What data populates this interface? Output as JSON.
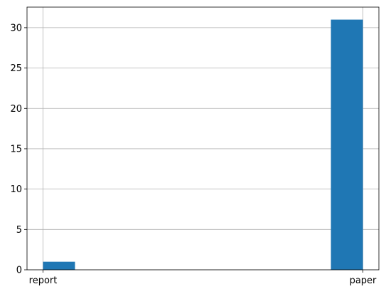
{
  "chart_data": {
    "type": "histogram",
    "bins": [
      0,
      0.1,
      0.2,
      0.3,
      0.4,
      0.5,
      0.6,
      0.7,
      0.8,
      0.9,
      1
    ],
    "values": [
      1,
      0,
      0,
      0,
      0,
      0,
      0,
      0,
      0,
      31
    ],
    "color": "#1f77b4",
    "xlim": [
      -0.05,
      1.05
    ],
    "xticks": [
      {
        "value": 0,
        "label": "report"
      },
      {
        "value": 1,
        "label": "paper"
      }
    ],
    "ylim": [
      0,
      32.55
    ],
    "yticks": [
      0,
      5,
      10,
      15,
      20,
      25,
      30
    ],
    "grid": true
  }
}
